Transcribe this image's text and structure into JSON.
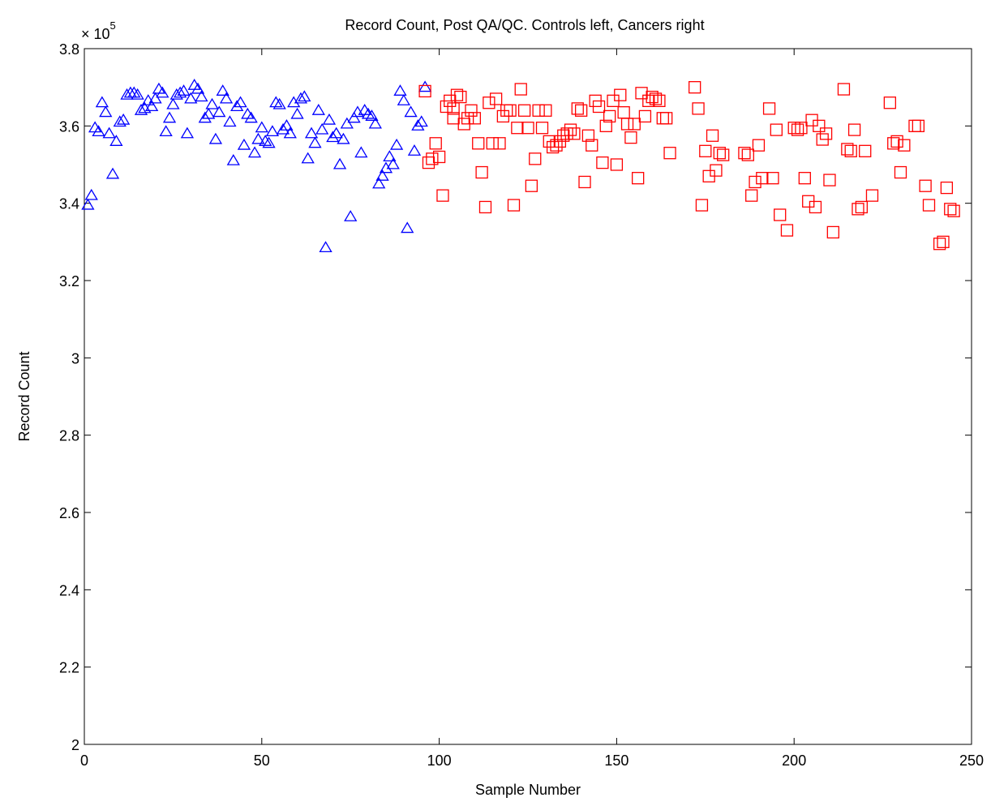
{
  "chart_data": {
    "type": "scatter",
    "title": "Record Count, Post QA/QC. Controls left, Cancers right",
    "xlabel": "Sample Number",
    "ylabel": "Record Count",
    "y_multiplier_base": "× 10",
    "y_multiplier_exponent": "5",
    "xlim": [
      0,
      250
    ],
    "ylim": [
      2,
      3.8
    ],
    "x_ticks": [
      0,
      50,
      100,
      150,
      200,
      250
    ],
    "x_tick_labels": [
      "0",
      "50",
      "100",
      "150",
      "200",
      "250"
    ],
    "y_ticks": [
      2,
      2.2,
      2.4,
      2.6,
      2.8,
      3,
      3.2,
      3.4,
      3.6,
      3.8
    ],
    "y_tick_labels": [
      "2",
      "2.2",
      "2.4",
      "2.6",
      "2.8",
      "3",
      "3.2",
      "3.4",
      "3.6",
      "3.8"
    ],
    "grid": false,
    "series": [
      {
        "marker": "triangle",
        "color": "#0000ff",
        "points": [
          [
            1,
            3.395
          ],
          [
            2,
            3.42
          ],
          [
            3,
            3.595
          ],
          [
            4,
            3.585
          ],
          [
            5,
            3.66
          ],
          [
            6,
            3.635
          ],
          [
            7,
            3.58
          ],
          [
            8,
            3.475
          ],
          [
            9,
            3.56
          ],
          [
            10,
            3.61
          ],
          [
            11,
            3.615
          ],
          [
            12,
            3.68
          ],
          [
            13,
            3.685
          ],
          [
            14,
            3.685
          ],
          [
            15,
            3.68
          ],
          [
            16,
            3.64
          ],
          [
            17,
            3.645
          ],
          [
            18,
            3.665
          ],
          [
            19,
            3.65
          ],
          [
            20,
            3.67
          ],
          [
            21,
            3.695
          ],
          [
            22,
            3.685
          ],
          [
            23,
            3.585
          ],
          [
            24,
            3.62
          ],
          [
            25,
            3.655
          ],
          [
            26,
            3.68
          ],
          [
            27,
            3.685
          ],
          [
            28,
            3.69
          ],
          [
            29,
            3.58
          ],
          [
            30,
            3.67
          ],
          [
            31,
            3.705
          ],
          [
            32,
            3.695
          ],
          [
            33,
            3.675
          ],
          [
            34,
            3.62
          ],
          [
            35,
            3.63
          ],
          [
            36,
            3.655
          ],
          [
            37,
            3.565
          ],
          [
            38,
            3.635
          ],
          [
            39,
            3.69
          ],
          [
            40,
            3.67
          ],
          [
            41,
            3.61
          ],
          [
            42,
            3.51
          ],
          [
            43,
            3.65
          ],
          [
            44,
            3.66
          ],
          [
            45,
            3.55
          ],
          [
            46,
            3.63
          ],
          [
            47,
            3.62
          ],
          [
            48,
            3.53
          ],
          [
            49,
            3.565
          ],
          [
            50,
            3.595
          ],
          [
            51,
            3.56
          ],
          [
            52,
            3.555
          ],
          [
            53,
            3.585
          ],
          [
            54,
            3.66
          ],
          [
            55,
            3.655
          ],
          [
            56,
            3.59
          ],
          [
            57,
            3.6
          ],
          [
            58,
            3.58
          ],
          [
            59,
            3.66
          ],
          [
            60,
            3.63
          ],
          [
            61,
            3.67
          ],
          [
            62,
            3.675
          ],
          [
            63,
            3.515
          ],
          [
            64,
            3.58
          ],
          [
            65,
            3.555
          ],
          [
            66,
            3.64
          ],
          [
            67,
            3.59
          ],
          [
            68,
            3.285
          ],
          [
            69,
            3.615
          ],
          [
            70,
            3.57
          ],
          [
            71,
            3.58
          ],
          [
            72,
            3.5
          ],
          [
            73,
            3.565
          ],
          [
            74,
            3.605
          ],
          [
            75,
            3.365
          ],
          [
            76,
            3.62
          ],
          [
            77,
            3.635
          ],
          [
            78,
            3.53
          ],
          [
            79,
            3.64
          ],
          [
            80,
            3.63
          ],
          [
            81,
            3.625
          ],
          [
            82,
            3.605
          ],
          [
            83,
            3.45
          ],
          [
            84,
            3.47
          ],
          [
            85,
            3.49
          ],
          [
            86,
            3.52
          ],
          [
            87,
            3.5
          ],
          [
            88,
            3.55
          ],
          [
            89,
            3.69
          ],
          [
            90,
            3.665
          ],
          [
            91,
            3.335
          ],
          [
            92,
            3.635
          ],
          [
            93,
            3.535
          ],
          [
            94,
            3.6
          ],
          [
            95,
            3.61
          ],
          [
            96,
            3.7
          ]
        ]
      },
      {
        "marker": "square",
        "color": "#ff0000",
        "points": [
          [
            96,
            3.69
          ],
          [
            97,
            3.505
          ],
          [
            98,
            3.515
          ],
          [
            99,
            3.555
          ],
          [
            100,
            3.52
          ],
          [
            101,
            3.42
          ],
          [
            102,
            3.65
          ],
          [
            103,
            3.665
          ],
          [
            104,
            3.645
          ],
          [
            104,
            3.62
          ],
          [
            105,
            3.68
          ],
          [
            106,
            3.675
          ],
          [
            107,
            3.605
          ],
          [
            108,
            3.62
          ],
          [
            109,
            3.64
          ],
          [
            110,
            3.62
          ],
          [
            111,
            3.555
          ],
          [
            112,
            3.48
          ],
          [
            113,
            3.39
          ],
          [
            114,
            3.66
          ],
          [
            115,
            3.555
          ],
          [
            116,
            3.67
          ],
          [
            117,
            3.555
          ],
          [
            118,
            3.625
          ],
          [
            119,
            3.64
          ],
          [
            120,
            3.64
          ],
          [
            121,
            3.395
          ],
          [
            122,
            3.595
          ],
          [
            123,
            3.695
          ],
          [
            124,
            3.64
          ],
          [
            125,
            3.595
          ],
          [
            126,
            3.445
          ],
          [
            127,
            3.515
          ],
          [
            128,
            3.64
          ],
          [
            129,
            3.595
          ],
          [
            130,
            3.64
          ],
          [
            131,
            3.56
          ],
          [
            132,
            3.545
          ],
          [
            133,
            3.55
          ],
          [
            134,
            3.56
          ],
          [
            135,
            3.575
          ],
          [
            136,
            3.58
          ],
          [
            137,
            3.59
          ],
          [
            138,
            3.58
          ],
          [
            139,
            3.645
          ],
          [
            140,
            3.64
          ],
          [
            141,
            3.455
          ],
          [
            142,
            3.575
          ],
          [
            143,
            3.55
          ],
          [
            144,
            3.665
          ],
          [
            145,
            3.65
          ],
          [
            146,
            3.505
          ],
          [
            147,
            3.6
          ],
          [
            148,
            3.625
          ],
          [
            149,
            3.665
          ],
          [
            150,
            3.5
          ],
          [
            151,
            3.68
          ],
          [
            152,
            3.635
          ],
          [
            153,
            3.605
          ],
          [
            154,
            3.57
          ],
          [
            155,
            3.605
          ],
          [
            156,
            3.465
          ],
          [
            157,
            3.685
          ],
          [
            158,
            3.625
          ],
          [
            159,
            3.665
          ],
          [
            160,
            3.675
          ],
          [
            161,
            3.67
          ],
          [
            162,
            3.665
          ],
          [
            163,
            3.62
          ],
          [
            164,
            3.62
          ],
          [
            165,
            3.53
          ],
          [
            172,
            3.7
          ],
          [
            173,
            3.645
          ],
          [
            174,
            3.395
          ],
          [
            175,
            3.535
          ],
          [
            176,
            3.47
          ],
          [
            177,
            3.575
          ],
          [
            178,
            3.485
          ],
          [
            179,
            3.53
          ],
          [
            180,
            3.525
          ],
          [
            186,
            3.53
          ],
          [
            187,
            3.525
          ],
          [
            188,
            3.42
          ],
          [
            189,
            3.455
          ],
          [
            190,
            3.55
          ],
          [
            191,
            3.465
          ],
          [
            193,
            3.645
          ],
          [
            194,
            3.465
          ],
          [
            195,
            3.59
          ],
          [
            196,
            3.37
          ],
          [
            198,
            3.33
          ],
          [
            200,
            3.595
          ],
          [
            201,
            3.59
          ],
          [
            202,
            3.595
          ],
          [
            203,
            3.465
          ],
          [
            204,
            3.405
          ],
          [
            205,
            3.615
          ],
          [
            206,
            3.39
          ],
          [
            207,
            3.6
          ],
          [
            208,
            3.565
          ],
          [
            209,
            3.58
          ],
          [
            210,
            3.46
          ],
          [
            211,
            3.325
          ],
          [
            214,
            3.695
          ],
          [
            215,
            3.54
          ],
          [
            216,
            3.535
          ],
          [
            217,
            3.59
          ],
          [
            218,
            3.385
          ],
          [
            219,
            3.39
          ],
          [
            220,
            3.535
          ],
          [
            222,
            3.42
          ],
          [
            227,
            3.66
          ],
          [
            228,
            3.555
          ],
          [
            229,
            3.56
          ],
          [
            230,
            3.48
          ],
          [
            231,
            3.55
          ],
          [
            234,
            3.6
          ],
          [
            235,
            3.6
          ],
          [
            237,
            3.445
          ],
          [
            238,
            3.395
          ],
          [
            241,
            3.295
          ],
          [
            242,
            3.3
          ],
          [
            243,
            3.44
          ],
          [
            244,
            3.385
          ],
          [
            245,
            3.38
          ]
        ]
      }
    ]
  }
}
